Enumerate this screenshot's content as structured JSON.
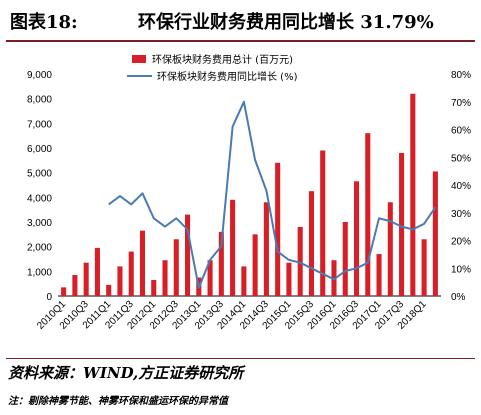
{
  "header": {
    "figure_label": "图表18:",
    "title": "环保行业财务费用同比增长 31.79%"
  },
  "footer": {
    "source": "资料来源：WIND,方正证券研究所",
    "note": "注：剔除神雾节能、神雾环保和盛运环保的异常值"
  },
  "colors": {
    "bar": "#d61f26",
    "line": "#4a7bb5",
    "rule": "#7a1f24"
  },
  "chart_data": {
    "type": "bar+line",
    "categories": [
      "2010Q1",
      "2010Q2",
      "2010Q3",
      "2010Q4",
      "2011Q1",
      "2011Q2",
      "2011Q3",
      "2011Q4",
      "2012Q1",
      "2012Q2",
      "2012Q3",
      "2012Q4",
      "2013Q1",
      "2013Q2",
      "2013Q3",
      "2013Q4",
      "2014Q1",
      "2014Q2",
      "2014Q3",
      "2014Q4",
      "2015Q1",
      "2015Q2",
      "2015Q3",
      "2015Q4",
      "2016Q1",
      "2016Q2",
      "2016Q3",
      "2016Q4",
      "2017Q1",
      "2017Q2",
      "2017Q3",
      "2017Q4",
      "2018Q1",
      "2018Q2"
    ],
    "x_tick_labels": [
      "2010Q1",
      "2010Q3",
      "2011Q1",
      "2011Q3",
      "2012Q1",
      "2012Q3",
      "2013Q1",
      "2013Q3",
      "2014Q1",
      "2014Q3",
      "2015Q1",
      "2015Q3",
      "2016Q1",
      "2016Q3",
      "2017Q1",
      "2017Q3",
      "2018Q1"
    ],
    "series": [
      {
        "name": "环保板块财务费用总计 (百万元)",
        "kind": "bar",
        "axis": "left",
        "values": [
          350,
          850,
          1350,
          1950,
          450,
          1200,
          1800,
          2650,
          650,
          1450,
          2300,
          3300,
          750,
          1450,
          2600,
          3900,
          1200,
          2500,
          3800,
          5400,
          1350,
          2800,
          4250,
          5900,
          1450,
          3000,
          4650,
          6600,
          1700,
          3800,
          5800,
          8200,
          2300,
          5050
        ]
      },
      {
        "name": "环保板块财务费用同比增长 (%)",
        "kind": "line",
        "axis": "right",
        "values": [
          null,
          null,
          null,
          null,
          33,
          36,
          33,
          37,
          28,
          25,
          28,
          24,
          3,
          13,
          18,
          61,
          70,
          49,
          38,
          16,
          13,
          12,
          10,
          8,
          6,
          9,
          10,
          12,
          28,
          27,
          25,
          24,
          26,
          32
        ]
      }
    ],
    "y_left": {
      "min": 0,
      "max": 9000,
      "step": 1000,
      "tick_labels": [
        "0",
        "1,000",
        "2,000",
        "3,000",
        "4,000",
        "5,000",
        "6,000",
        "7,000",
        "8,000",
        "9,000"
      ]
    },
    "y_right": {
      "min": 0,
      "max": 80,
      "step": 10,
      "tick_labels": [
        "0%",
        "10%",
        "20%",
        "30%",
        "40%",
        "50%",
        "60%",
        "70%",
        "80%"
      ]
    },
    "legend_position": "top-center",
    "grid": false
  }
}
